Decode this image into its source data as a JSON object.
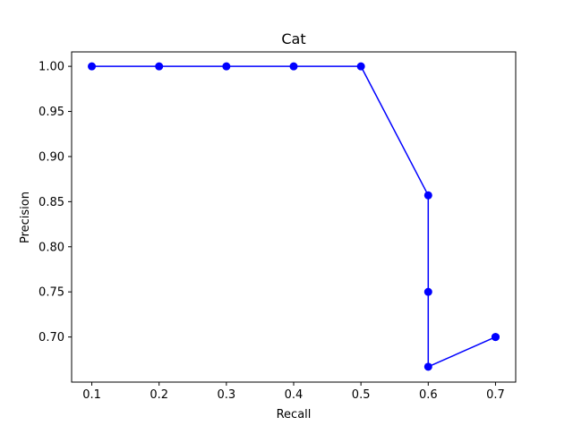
{
  "chart_data": {
    "type": "line",
    "title": "Cat",
    "xlabel": "Recall",
    "ylabel": "Precision",
    "xlim": [
      0.07,
      0.73
    ],
    "ylim": [
      0.65,
      1.016
    ],
    "grid": false,
    "x_ticks": [
      0.1,
      0.2,
      0.3,
      0.4,
      0.5,
      0.6,
      0.7
    ],
    "x_tick_labels": [
      "0.1",
      "0.2",
      "0.3",
      "0.4",
      "0.5",
      "0.6",
      "0.7"
    ],
    "y_ticks": [
      0.7,
      0.75,
      0.8,
      0.85,
      0.9,
      0.95,
      1.0
    ],
    "y_tick_labels": [
      "0.70",
      "0.75",
      "0.80",
      "0.85",
      "0.90",
      "0.95",
      "1.00"
    ],
    "series": [
      {
        "color": "#0000ff",
        "marker": "circle",
        "points": [
          {
            "x": 0.1,
            "y": 1.0
          },
          {
            "x": 0.2,
            "y": 1.0
          },
          {
            "x": 0.3,
            "y": 1.0
          },
          {
            "x": 0.4,
            "y": 1.0
          },
          {
            "x": 0.5,
            "y": 1.0
          },
          {
            "x": 0.6,
            "y": 0.857
          },
          {
            "x": 0.6,
            "y": 0.75
          },
          {
            "x": 0.6,
            "y": 0.667
          },
          {
            "x": 0.7,
            "y": 0.7
          },
          {
            "x": 0.7,
            "y": 0.7
          }
        ]
      }
    ]
  }
}
